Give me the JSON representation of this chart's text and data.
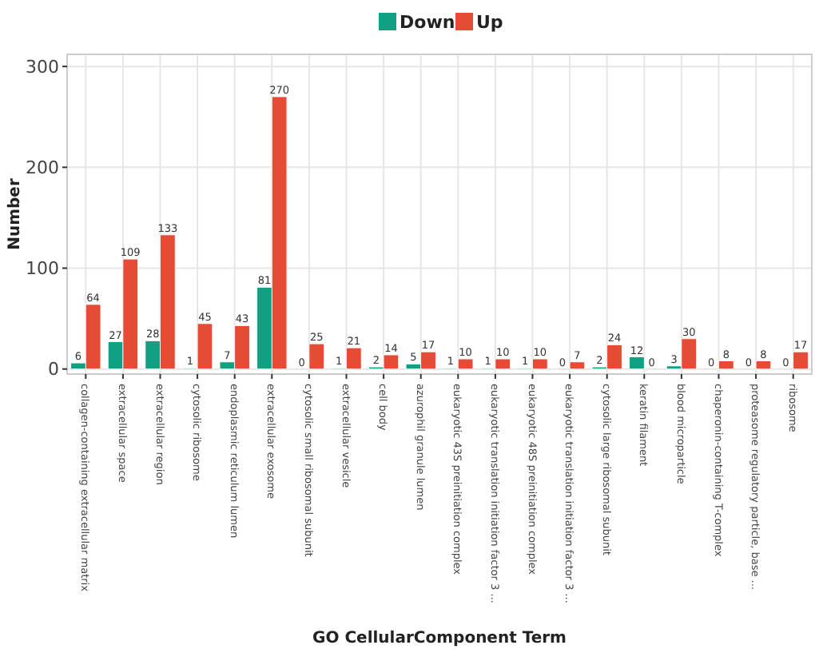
{
  "chart_data": {
    "type": "bar",
    "xlabel": "GO CellularComponent Term",
    "ylabel": "Number",
    "categories": [
      "collagen-containing extracellular matrix",
      "extracellular space",
      "extracellular region",
      "cytosolic ribosome",
      "endoplasmic reticulum lumen",
      "extracellular exosome",
      "cytosolic small ribosomal subunit",
      "extracellular vesicle",
      "cell body",
      "azurophil granule lumen",
      "eukaryotic 43S preinitiation complex",
      "eukaryotic translation initiation factor 3 ...",
      "eukaryotic 48S preinitiation complex",
      "eukaryotic translation initiation factor 3 ...",
      "cytosolic large ribosomal subunit",
      "keratin filament",
      "blood microparticle",
      "chaperonin-containing T-complex",
      "proteasome regulatory particle, base ...",
      "ribosome"
    ],
    "series": [
      {
        "name": "Down",
        "color": "#12a083",
        "values": [
          6,
          27,
          28,
          1,
          7,
          81,
          0,
          1,
          2,
          5,
          1,
          1,
          1,
          0,
          2,
          12,
          3,
          0,
          0,
          0
        ]
      },
      {
        "name": "Up",
        "color": "#e64b35",
        "values": [
          64,
          109,
          133,
          45,
          43,
          270,
          25,
          21,
          14,
          17,
          10,
          10,
          10,
          7,
          24,
          0,
          30,
          8,
          8,
          17
        ]
      }
    ],
    "ylim": [
      -5,
      312
    ],
    "yticks": [
      0,
      100,
      200,
      300
    ],
    "grid": true,
    "legend": "top",
    "data_labels": true
  }
}
